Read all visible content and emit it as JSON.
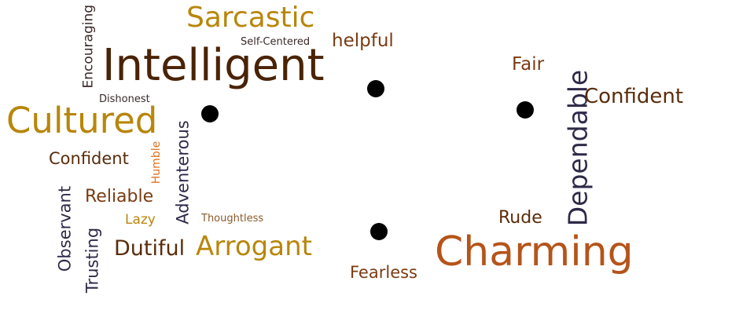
{
  "word_cloud": {
    "words": [
      {
        "id": "sarcastic",
        "text": "Sarcastic",
        "color": "#b8860b"
      },
      {
        "id": "self-centered",
        "text": "Self-Centered",
        "color": "#3a2a2a"
      },
      {
        "id": "helpful",
        "text": "helpful",
        "color": "#7a3b12"
      },
      {
        "id": "encouraging",
        "text": "Encouraging",
        "color": "#3a2a2a"
      },
      {
        "id": "intelligent",
        "text": "Intelligent",
        "color": "#4a2306"
      },
      {
        "id": "dishonest",
        "text": "Dishonest",
        "color": "#3a2a2a"
      },
      {
        "id": "cultured",
        "text": "Cultured",
        "color": "#b8860b"
      },
      {
        "id": "confident-left",
        "text": "Confident",
        "color": "#5a2d0c"
      },
      {
        "id": "humble",
        "text": "Humble",
        "color": "#e07020"
      },
      {
        "id": "adventerous",
        "text": "Adventerous",
        "color": "#2e2a48"
      },
      {
        "id": "observant",
        "text": "Observant",
        "color": "#2e2a48"
      },
      {
        "id": "reliable",
        "text": "Reliable",
        "color": "#7a3b12"
      },
      {
        "id": "lazy",
        "text": "Lazy",
        "color": "#b8860b"
      },
      {
        "id": "thoughtless",
        "text": "Thoughtless",
        "color": "#8b5a2b"
      },
      {
        "id": "trusting",
        "text": "Trusting",
        "color": "#2e2a48"
      },
      {
        "id": "dutiful",
        "text": "Dutiful",
        "color": "#5a2d0c"
      },
      {
        "id": "arrogant",
        "text": "Arrogant",
        "color": "#b8860b"
      },
      {
        "id": "fearless",
        "text": "Fearless",
        "color": "#7a3b12"
      },
      {
        "id": "fair",
        "text": "Fair",
        "color": "#7a3b12"
      },
      {
        "id": "dependable",
        "text": "Dependable",
        "color": "#2e2a48"
      },
      {
        "id": "confident-right",
        "text": "Confident",
        "color": "#5a2d0c"
      },
      {
        "id": "rude",
        "text": "Rude",
        "color": "#5a2d0c"
      },
      {
        "id": "charming",
        "text": "Charming",
        "color": "#b5541a"
      }
    ],
    "dot_color": "#000000"
  }
}
